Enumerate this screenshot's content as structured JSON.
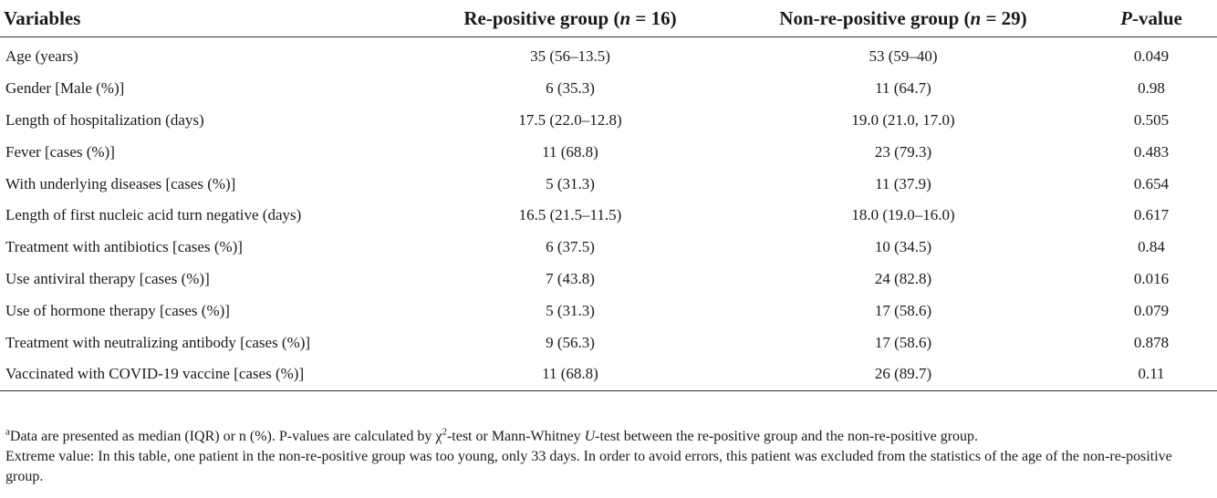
{
  "table": {
    "headers": {
      "variables": "Variables",
      "repositive_label": "Re-positive group (",
      "repositive_n_symbol": "n",
      "repositive_n_value": " = 16)",
      "nonrepositive_label": "Non-re-positive group (",
      "nonrepositive_n_symbol": "n",
      "nonrepositive_n_value": " = 29)",
      "pvalue_symbol": "P",
      "pvalue_suffix": "-value"
    },
    "rows": [
      {
        "variable": "Age (years)",
        "repositive": "35 (56–13.5)",
        "nonrepositive": "53 (59–40)",
        "p": "0.049"
      },
      {
        "variable": "Gender [Male (%)]",
        "repositive": "6 (35.3)",
        "nonrepositive": "11 (64.7)",
        "p": "0.98"
      },
      {
        "variable": "Length of hospitalization (days)",
        "repositive": "17.5 (22.0–12.8)",
        "nonrepositive": "19.0 (21.0, 17.0)",
        "p": "0.505"
      },
      {
        "variable": "Fever [cases (%)]",
        "repositive": "11 (68.8)",
        "nonrepositive": "23 (79.3)",
        "p": "0.483"
      },
      {
        "variable": "With underlying diseases [cases (%)]",
        "repositive": "5 (31.3)",
        "nonrepositive": "11 (37.9)",
        "p": "0.654"
      },
      {
        "variable": "Length of first nucleic acid turn negative (days)",
        "repositive": "16.5 (21.5–11.5)",
        "nonrepositive": "18.0 (19.0–16.0)",
        "p": "0.617"
      },
      {
        "variable": "Treatment with antibiotics [cases (%)]",
        "repositive": "6 (37.5)",
        "nonrepositive": "10 (34.5)",
        "p": "0.84"
      },
      {
        "variable": "Use antiviral therapy [cases (%)]",
        "repositive": "7 (43.8)",
        "nonrepositive": "24 (82.8)",
        "p": "0.016"
      },
      {
        "variable": "Use of hormone therapy [cases (%)]",
        "repositive": "5 (31.3)",
        "nonrepositive": "17 (58.6)",
        "p": "0.079"
      },
      {
        "variable": "Treatment with neutralizing antibody [cases (%)]",
        "repositive": "9 (56.3)",
        "nonrepositive": "17 (58.6)",
        "p": "0.878"
      },
      {
        "variable": "Vaccinated with COVID-19 vaccine [cases (%)]",
        "repositive": "11 (68.8)",
        "nonrepositive": "26 (89.7)",
        "p": "0.11"
      }
    ]
  },
  "notes": {
    "footnote_marker": "a",
    "footnote_part1": "Data are presented as median (IQR) or n (%). P-values are calculated by χ",
    "footnote_sup": "2",
    "footnote_part2": "-test or Mann-Whitney ",
    "footnote_u": "U",
    "footnote_part3": "-test between the re-positive group and the non-re-positive group.",
    "extreme_value": "Extreme value: In this table, one patient in the non-re-positive group was too young, only 33 days. In order to avoid errors, this patient was excluded from the statistics of the age of the non-re-positive group."
  }
}
